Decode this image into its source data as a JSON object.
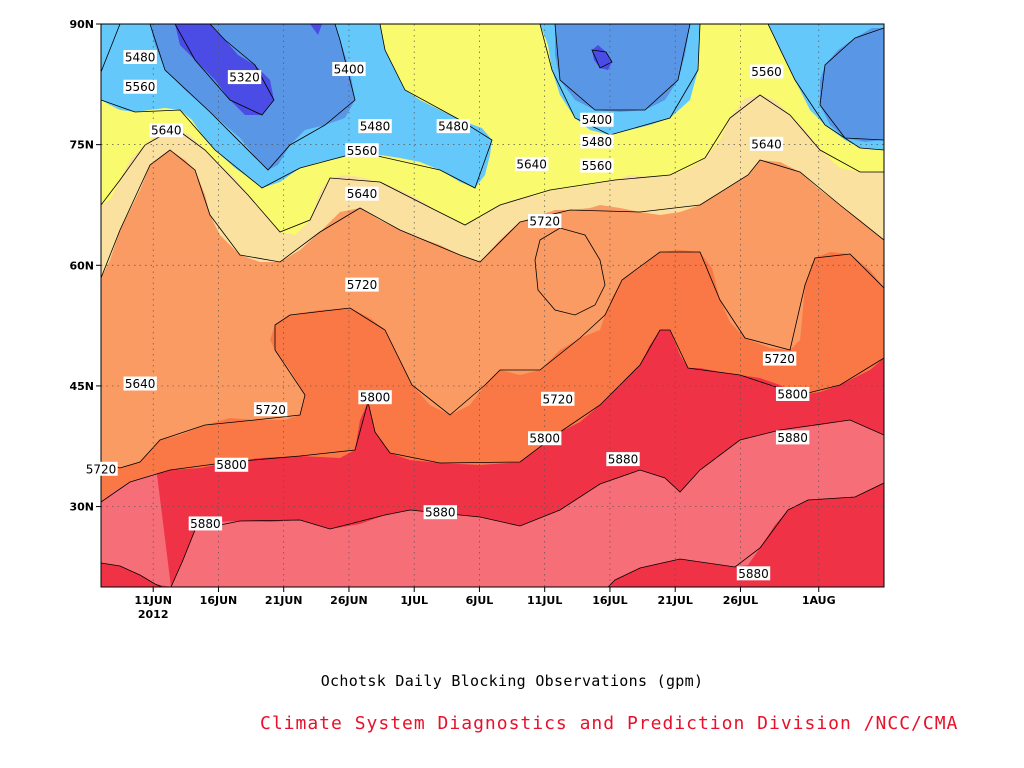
{
  "chart_data": {
    "type": "heatmap",
    "title": "",
    "subtitle": "Ochotsk Daily Blocking Observations (gpm)",
    "credit": "Climate System Diagnostics and Prediction Division /NCC/CMA",
    "xlabel": "",
    "ylabel": "",
    "x_range": [
      "2012-06-07",
      "2012-08-06"
    ],
    "y_range": [
      20,
      90
    ],
    "grid": true,
    "x_ticks": [
      {
        "date": "2012-06-11",
        "label": "11JUN",
        "sublabel": "2012"
      },
      {
        "date": "2012-06-16",
        "label": "16JUN"
      },
      {
        "date": "2012-06-21",
        "label": "21JUN"
      },
      {
        "date": "2012-06-26",
        "label": "26JUN"
      },
      {
        "date": "2012-07-01",
        "label": "1JUL"
      },
      {
        "date": "2012-07-06",
        "label": "6JUL"
      },
      {
        "date": "2012-07-11",
        "label": "11JUL"
      },
      {
        "date": "2012-07-16",
        "label": "16JUL"
      },
      {
        "date": "2012-07-21",
        "label": "21JUL"
      },
      {
        "date": "2012-07-26",
        "label": "26JUL"
      },
      {
        "date": "2012-08-01",
        "label": "1AUG"
      }
    ],
    "y_ticks": [
      {
        "value": 90,
        "label": "90N"
      },
      {
        "value": 75,
        "label": "75N"
      },
      {
        "value": 60,
        "label": "60N"
      },
      {
        "value": 45,
        "label": "45N"
      },
      {
        "value": 30,
        "label": "30N"
      }
    ],
    "levels": [
      5320,
      5400,
      5480,
      5560,
      5640,
      5720,
      5800,
      5880
    ],
    "fill_colors": [
      "#4b4be6",
      "#5a96e6",
      "#64c8fa",
      "#fafa6e",
      "#fae1a0",
      "#fa9b64",
      "#fa7846",
      "#f56e78",
      "#f03246"
    ],
    "labels": [
      {
        "date": "2012-06-10",
        "lat": 85.9,
        "text": "5480"
      },
      {
        "date": "2012-06-10",
        "lat": 82.2,
        "text": "5560"
      },
      {
        "date": "2012-06-12",
        "lat": 76.8,
        "text": "5640"
      },
      {
        "date": "2012-06-18",
        "lat": 83.4,
        "text": "5320"
      },
      {
        "date": "2012-06-26",
        "lat": 84.4,
        "text": "5400"
      },
      {
        "date": "2012-06-28",
        "lat": 77.3,
        "text": "5480"
      },
      {
        "date": "2012-07-04",
        "lat": 77.3,
        "text": "5480"
      },
      {
        "date": "2012-06-27",
        "lat": 74.3,
        "text": "5560"
      },
      {
        "date": "2012-06-27",
        "lat": 68.9,
        "text": "5640"
      },
      {
        "date": "2012-06-27",
        "lat": 57.6,
        "text": "5720"
      },
      {
        "date": "2012-06-28",
        "lat": 43.6,
        "text": "5800"
      },
      {
        "date": "2012-07-15",
        "lat": 78.1,
        "text": "5400"
      },
      {
        "date": "2012-07-15",
        "lat": 75.4,
        "text": "5480"
      },
      {
        "date": "2012-07-15",
        "lat": 72.4,
        "text": "5560"
      },
      {
        "date": "2012-07-10",
        "lat": 72.6,
        "text": "5640"
      },
      {
        "date": "2012-07-11",
        "lat": 65.5,
        "text": "5720"
      },
      {
        "date": "2012-07-28",
        "lat": 84.1,
        "text": "5560"
      },
      {
        "date": "2012-07-28",
        "lat": 75.1,
        "text": "5640"
      },
      {
        "date": "2012-06-10",
        "lat": 45.3,
        "text": "5640"
      },
      {
        "date": "2012-06-07",
        "lat": 34.7,
        "text": "5720"
      },
      {
        "date": "2012-06-20",
        "lat": 42.1,
        "text": "5720"
      },
      {
        "date": "2012-06-17",
        "lat": 35.2,
        "text": "5800"
      },
      {
        "date": "2012-06-15",
        "lat": 27.9,
        "text": "5880"
      },
      {
        "date": "2012-07-03",
        "lat": 29.3,
        "text": "5880"
      },
      {
        "date": "2012-07-12",
        "lat": 43.4,
        "text": "5720"
      },
      {
        "date": "2012-07-11",
        "lat": 38.5,
        "text": "5800"
      },
      {
        "date": "2012-07-17",
        "lat": 35.9,
        "text": "5880"
      },
      {
        "date": "2012-07-29",
        "lat": 48.4,
        "text": "5720"
      },
      {
        "date": "2012-07-30",
        "lat": 44.0,
        "text": "5800"
      },
      {
        "date": "2012-07-30",
        "lat": 38.6,
        "text": "5880"
      },
      {
        "date": "2012-07-27",
        "lat": 21.7,
        "text": "5880"
      }
    ]
  }
}
